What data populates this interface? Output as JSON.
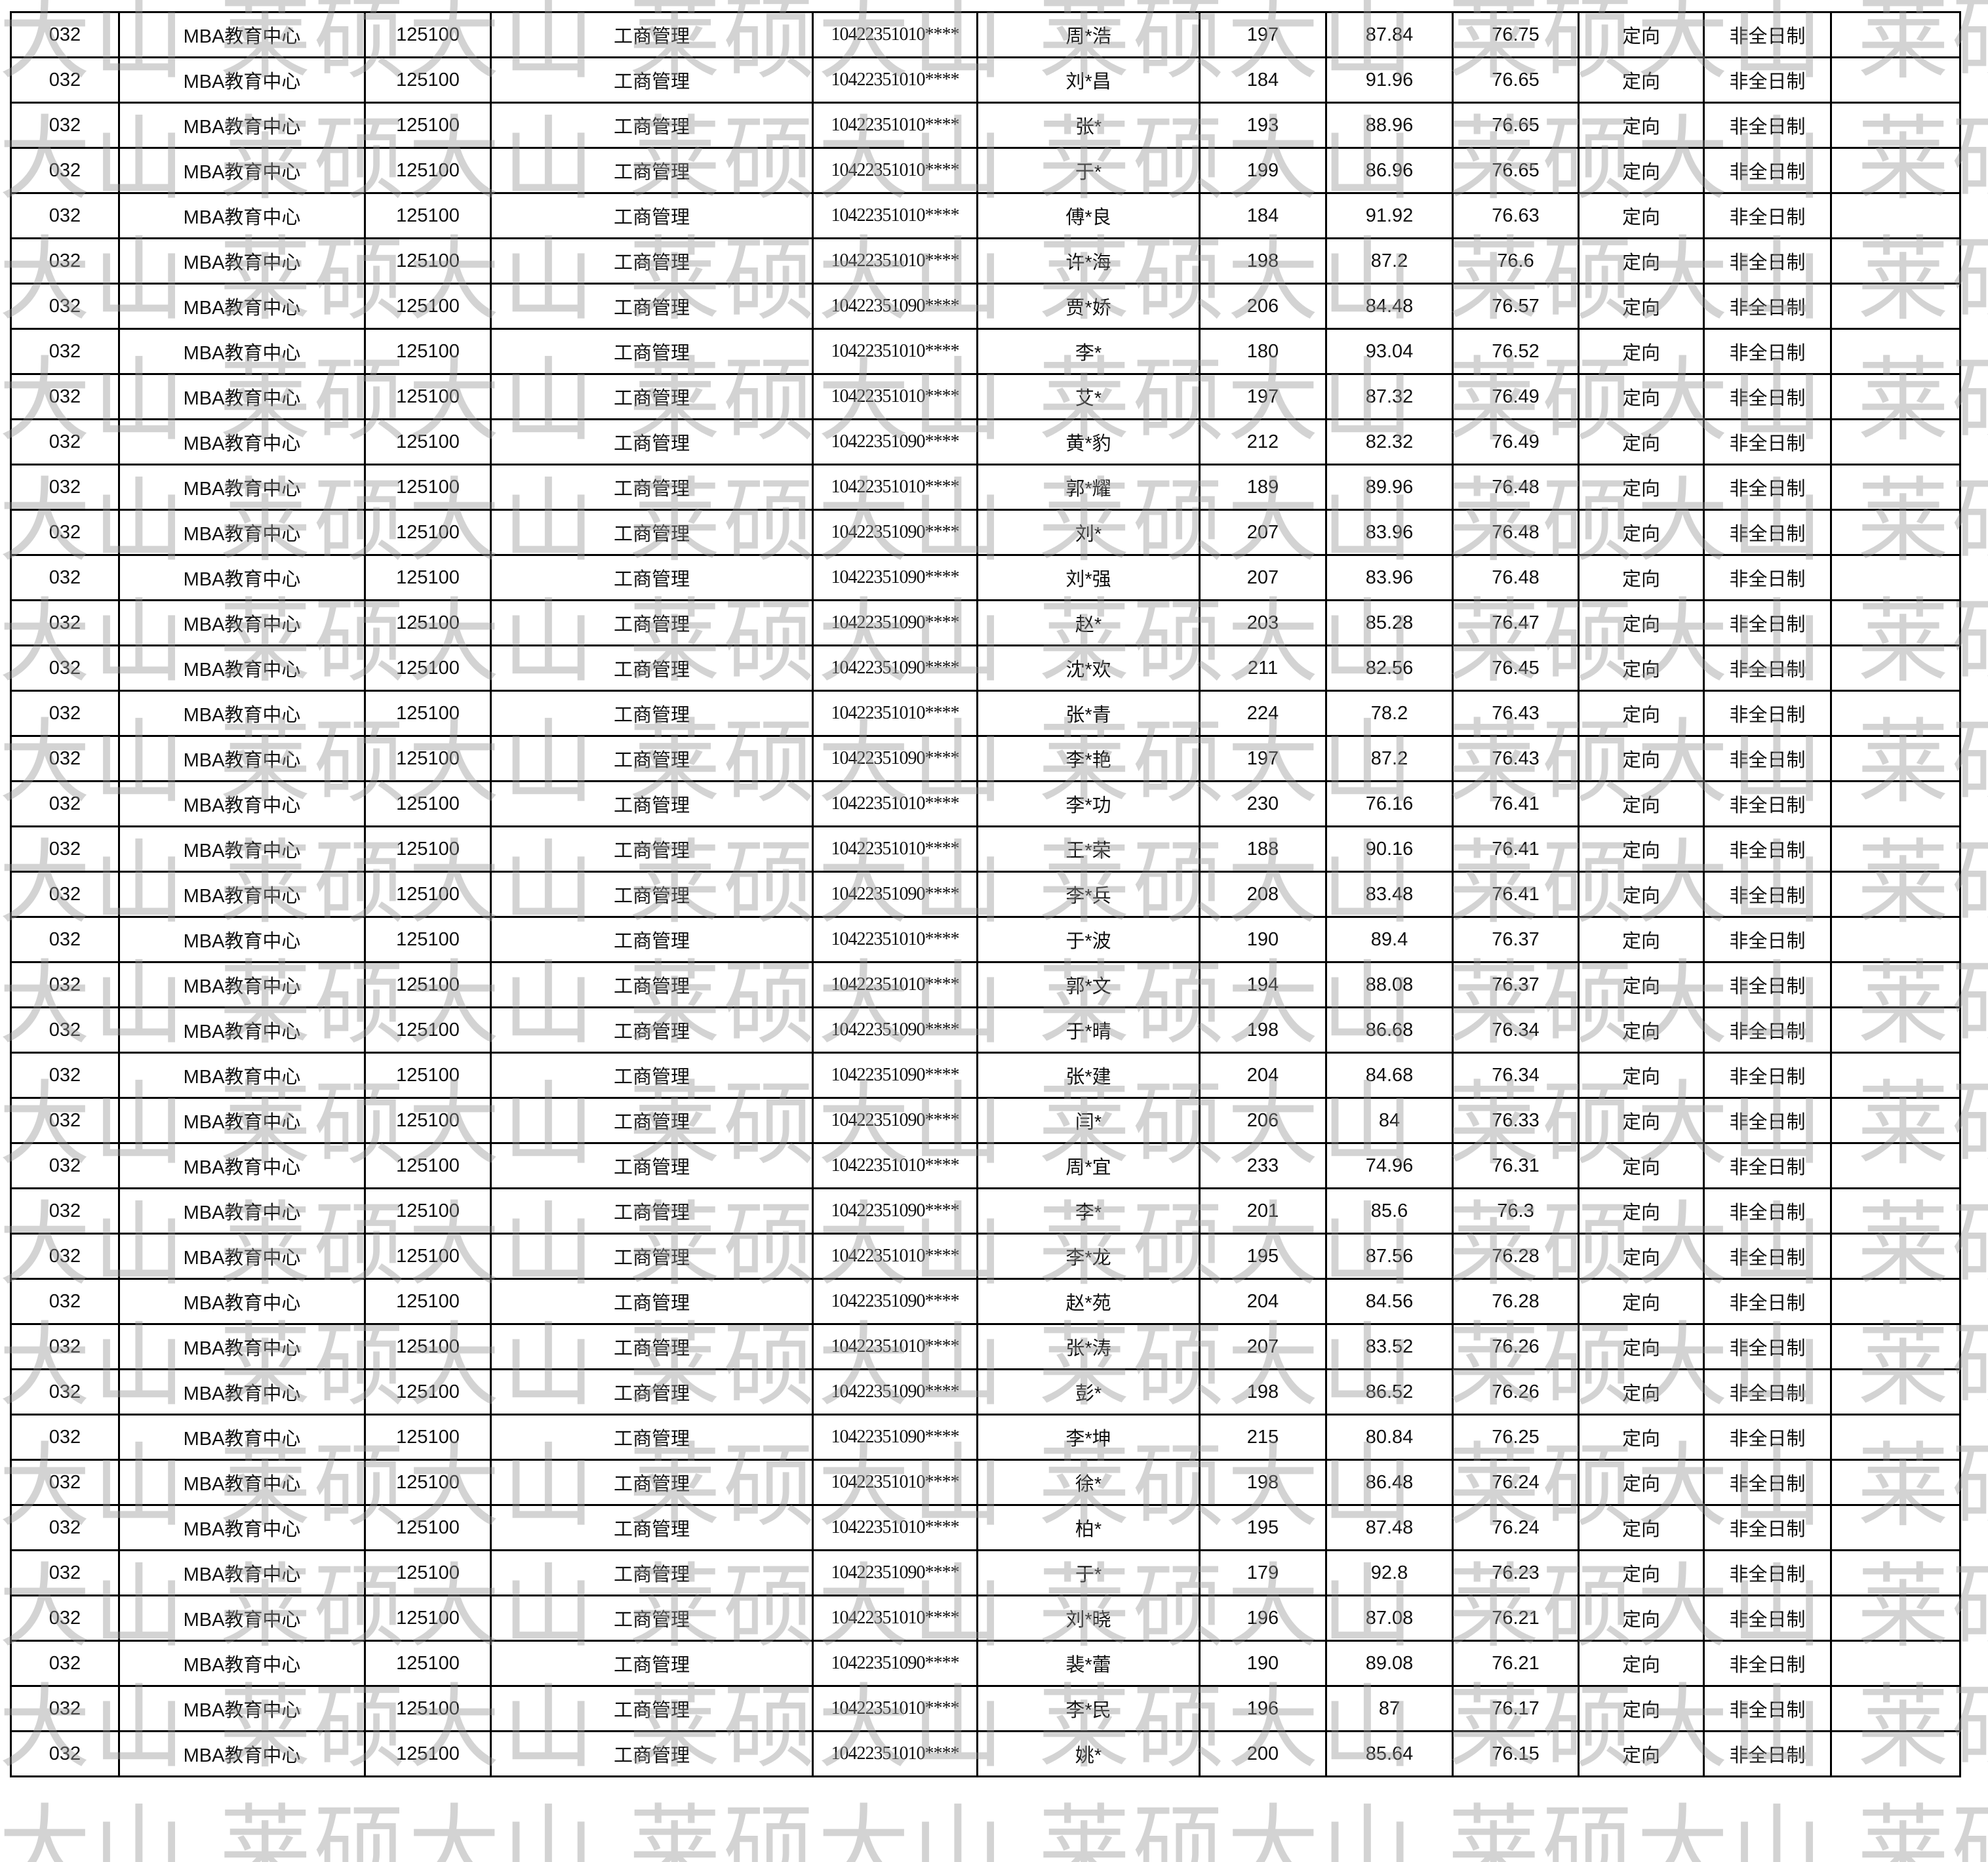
{
  "watermark": "莱硕大山",
  "table": {
    "columns": [
      "dept_code",
      "dept",
      "major_code",
      "major",
      "exam_id",
      "name",
      "initial_score",
      "retest_score",
      "total_score",
      "type",
      "study_mode",
      "remark"
    ],
    "rows": [
      [
        "032",
        "MBA教育中心",
        "125100",
        "工商管理",
        "10422351010****",
        "周*浩",
        "197",
        "87.84",
        "76.75",
        "定向",
        "非全日制",
        ""
      ],
      [
        "032",
        "MBA教育中心",
        "125100",
        "工商管理",
        "10422351010****",
        "刘*昌",
        "184",
        "91.96",
        "76.65",
        "定向",
        "非全日制",
        ""
      ],
      [
        "032",
        "MBA教育中心",
        "125100",
        "工商管理",
        "10422351010****",
        "张*",
        "193",
        "88.96",
        "76.65",
        "定向",
        "非全日制",
        ""
      ],
      [
        "032",
        "MBA教育中心",
        "125100",
        "工商管理",
        "10422351010****",
        "于*",
        "199",
        "86.96",
        "76.65",
        "定向",
        "非全日制",
        ""
      ],
      [
        "032",
        "MBA教育中心",
        "125100",
        "工商管理",
        "10422351010****",
        "傅*良",
        "184",
        "91.92",
        "76.63",
        "定向",
        "非全日制",
        ""
      ],
      [
        "032",
        "MBA教育中心",
        "125100",
        "工商管理",
        "10422351010****",
        "许*海",
        "198",
        "87.2",
        "76.6",
        "定向",
        "非全日制",
        ""
      ],
      [
        "032",
        "MBA教育中心",
        "125100",
        "工商管理",
        "10422351090****",
        "贾*娇",
        "206",
        "84.48",
        "76.57",
        "定向",
        "非全日制",
        ""
      ],
      [
        "032",
        "MBA教育中心",
        "125100",
        "工商管理",
        "10422351010****",
        "李*",
        "180",
        "93.04",
        "76.52",
        "定向",
        "非全日制",
        ""
      ],
      [
        "032",
        "MBA教育中心",
        "125100",
        "工商管理",
        "10422351010****",
        "艾*",
        "197",
        "87.32",
        "76.49",
        "定向",
        "非全日制",
        ""
      ],
      [
        "032",
        "MBA教育中心",
        "125100",
        "工商管理",
        "10422351090****",
        "黄*豹",
        "212",
        "82.32",
        "76.49",
        "定向",
        "非全日制",
        ""
      ],
      [
        "032",
        "MBA教育中心",
        "125100",
        "工商管理",
        "10422351010****",
        "郭*耀",
        "189",
        "89.96",
        "76.48",
        "定向",
        "非全日制",
        ""
      ],
      [
        "032",
        "MBA教育中心",
        "125100",
        "工商管理",
        "10422351090****",
        "刘*",
        "207",
        "83.96",
        "76.48",
        "定向",
        "非全日制",
        ""
      ],
      [
        "032",
        "MBA教育中心",
        "125100",
        "工商管理",
        "10422351090****",
        "刘*强",
        "207",
        "83.96",
        "76.48",
        "定向",
        "非全日制",
        ""
      ],
      [
        "032",
        "MBA教育中心",
        "125100",
        "工商管理",
        "10422351090****",
        "赵*",
        "203",
        "85.28",
        "76.47",
        "定向",
        "非全日制",
        ""
      ],
      [
        "032",
        "MBA教育中心",
        "125100",
        "工商管理",
        "10422351090****",
        "沈*欢",
        "211",
        "82.56",
        "76.45",
        "定向",
        "非全日制",
        ""
      ],
      [
        "032",
        "MBA教育中心",
        "125100",
        "工商管理",
        "10422351010****",
        "张*青",
        "224",
        "78.2",
        "76.43",
        "定向",
        "非全日制",
        ""
      ],
      [
        "032",
        "MBA教育中心",
        "125100",
        "工商管理",
        "10422351090****",
        "李*艳",
        "197",
        "87.2",
        "76.43",
        "定向",
        "非全日制",
        ""
      ],
      [
        "032",
        "MBA教育中心",
        "125100",
        "工商管理",
        "10422351010****",
        "李*功",
        "230",
        "76.16",
        "76.41",
        "定向",
        "非全日制",
        ""
      ],
      [
        "032",
        "MBA教育中心",
        "125100",
        "工商管理",
        "10422351010****",
        "王*荣",
        "188",
        "90.16",
        "76.41",
        "定向",
        "非全日制",
        ""
      ],
      [
        "032",
        "MBA教育中心",
        "125100",
        "工商管理",
        "10422351090****",
        "李*兵",
        "208",
        "83.48",
        "76.41",
        "定向",
        "非全日制",
        ""
      ],
      [
        "032",
        "MBA教育中心",
        "125100",
        "工商管理",
        "10422351010****",
        "于*波",
        "190",
        "89.4",
        "76.37",
        "定向",
        "非全日制",
        ""
      ],
      [
        "032",
        "MBA教育中心",
        "125100",
        "工商管理",
        "10422351010****",
        "郭*文",
        "194",
        "88.08",
        "76.37",
        "定向",
        "非全日制",
        ""
      ],
      [
        "032",
        "MBA教育中心",
        "125100",
        "工商管理",
        "10422351090****",
        "于*晴",
        "198",
        "86.68",
        "76.34",
        "定向",
        "非全日制",
        ""
      ],
      [
        "032",
        "MBA教育中心",
        "125100",
        "工商管理",
        "10422351090****",
        "张*建",
        "204",
        "84.68",
        "76.34",
        "定向",
        "非全日制",
        ""
      ],
      [
        "032",
        "MBA教育中心",
        "125100",
        "工商管理",
        "10422351090****",
        "闫*",
        "206",
        "84",
        "76.33",
        "定向",
        "非全日制",
        ""
      ],
      [
        "032",
        "MBA教育中心",
        "125100",
        "工商管理",
        "10422351010****",
        "周*宜",
        "233",
        "74.96",
        "76.31",
        "定向",
        "非全日制",
        ""
      ],
      [
        "032",
        "MBA教育中心",
        "125100",
        "工商管理",
        "10422351090****",
        "李*",
        "201",
        "85.6",
        "76.3",
        "定向",
        "非全日制",
        ""
      ],
      [
        "032",
        "MBA教育中心",
        "125100",
        "工商管理",
        "10422351010****",
        "李*龙",
        "195",
        "87.56",
        "76.28",
        "定向",
        "非全日制",
        ""
      ],
      [
        "032",
        "MBA教育中心",
        "125100",
        "工商管理",
        "10422351090****",
        "赵*苑",
        "204",
        "84.56",
        "76.28",
        "定向",
        "非全日制",
        ""
      ],
      [
        "032",
        "MBA教育中心",
        "125100",
        "工商管理",
        "10422351010****",
        "张*涛",
        "207",
        "83.52",
        "76.26",
        "定向",
        "非全日制",
        ""
      ],
      [
        "032",
        "MBA教育中心",
        "125100",
        "工商管理",
        "10422351090****",
        "彭*",
        "198",
        "86.52",
        "76.26",
        "定向",
        "非全日制",
        ""
      ],
      [
        "032",
        "MBA教育中心",
        "125100",
        "工商管理",
        "10422351090****",
        "李*坤",
        "215",
        "80.84",
        "76.25",
        "定向",
        "非全日制",
        ""
      ],
      [
        "032",
        "MBA教育中心",
        "125100",
        "工商管理",
        "10422351010****",
        "徐*",
        "198",
        "86.48",
        "76.24",
        "定向",
        "非全日制",
        ""
      ],
      [
        "032",
        "MBA教育中心",
        "125100",
        "工商管理",
        "10422351010****",
        "柏*",
        "195",
        "87.48",
        "76.24",
        "定向",
        "非全日制",
        ""
      ],
      [
        "032",
        "MBA教育中心",
        "125100",
        "工商管理",
        "10422351090****",
        "于*",
        "179",
        "92.8",
        "76.23",
        "定向",
        "非全日制",
        ""
      ],
      [
        "032",
        "MBA教育中心",
        "125100",
        "工商管理",
        "10422351010****",
        "刘*晓",
        "196",
        "87.08",
        "76.21",
        "定向",
        "非全日制",
        ""
      ],
      [
        "032",
        "MBA教育中心",
        "125100",
        "工商管理",
        "10422351090****",
        "裴*蕾",
        "190",
        "89.08",
        "76.21",
        "定向",
        "非全日制",
        ""
      ],
      [
        "032",
        "MBA教育中心",
        "125100",
        "工商管理",
        "10422351010****",
        "李*民",
        "196",
        "87",
        "76.17",
        "定向",
        "非全日制",
        ""
      ],
      [
        "032",
        "MBA教育中心",
        "125100",
        "工商管理",
        "10422351010****",
        "姚*",
        "200",
        "85.64",
        "76.15",
        "定向",
        "非全日制",
        ""
      ]
    ]
  }
}
